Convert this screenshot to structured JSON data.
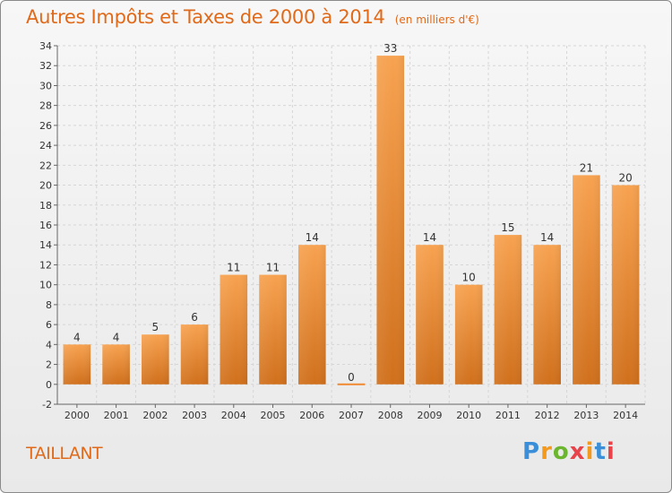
{
  "chart_data": {
    "type": "bar",
    "title": "Autres Impôts et Taxes de 2000 à 2014",
    "subtitle": "(en milliers d'€)",
    "categories": [
      "2000",
      "2001",
      "2002",
      "2003",
      "2004",
      "2005",
      "2006",
      "2007",
      "2008",
      "2009",
      "2010",
      "2011",
      "2012",
      "2013",
      "2014"
    ],
    "values": [
      4,
      4,
      5,
      6,
      11,
      11,
      14,
      0,
      33,
      14,
      10,
      15,
      14,
      21,
      20
    ],
    "ylim": [
      -2,
      34
    ],
    "yticks": [
      -2,
      0,
      2,
      4,
      6,
      8,
      10,
      12,
      14,
      16,
      18,
      20,
      22,
      24,
      26,
      28,
      30,
      32,
      34
    ],
    "grid": true,
    "bar_color": "#f08a30"
  },
  "commune": "TAILLANT",
  "logo": {
    "letters": [
      "P",
      "r",
      "o",
      "x",
      "i",
      "t",
      "i"
    ],
    "colors": [
      "#3a8fd8",
      "#f39a1e",
      "#6bb62e",
      "#e8434b",
      "#f39a1e",
      "#3a8fd8",
      "#e8434b"
    ]
  }
}
